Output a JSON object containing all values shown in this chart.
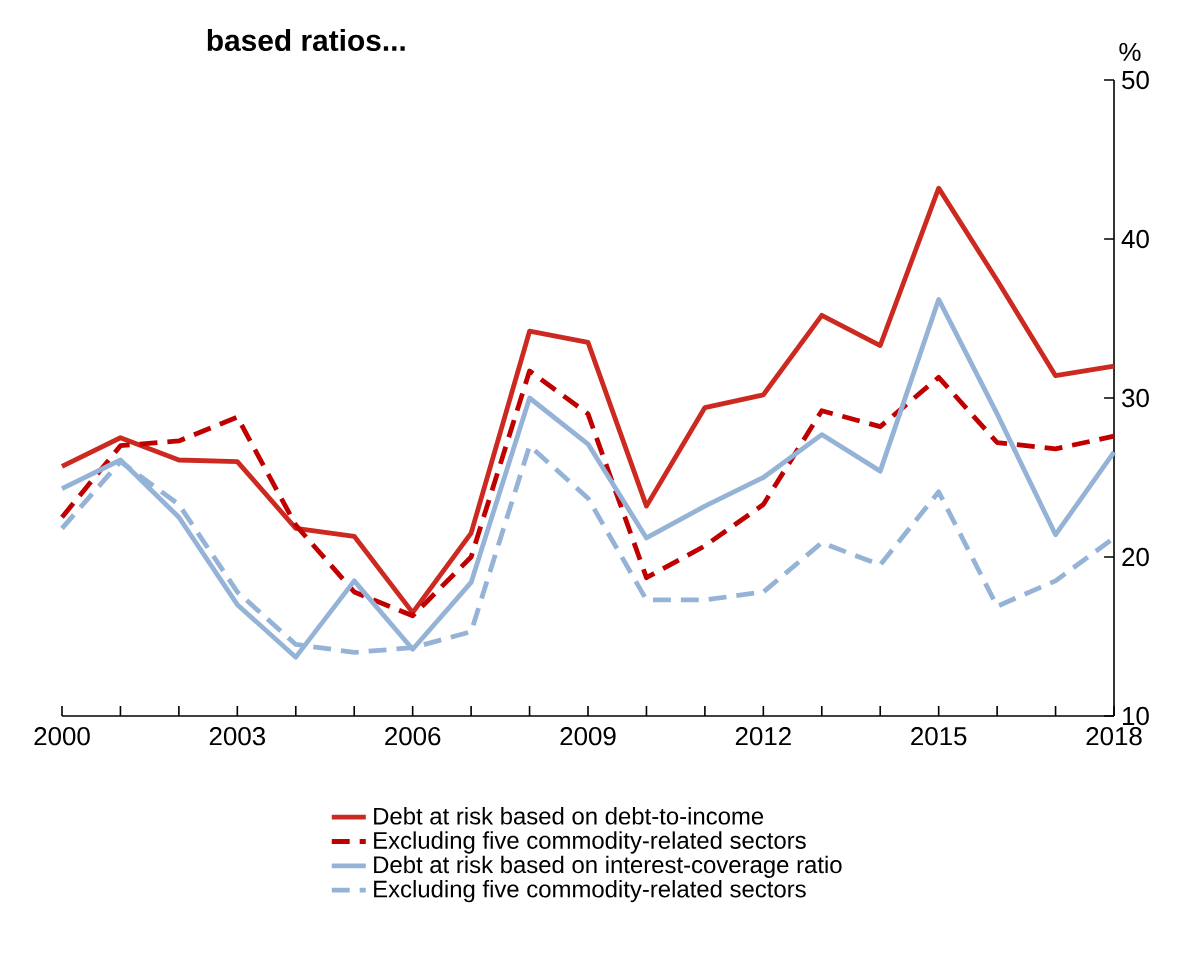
{
  "chart_data": {
    "type": "line",
    "title": "based ratios...",
    "ylabel": "%",
    "x": [
      2000,
      2001,
      2002,
      2003,
      2004,
      2005,
      2006,
      2007,
      2008,
      2009,
      2010,
      2011,
      2012,
      2013,
      2014,
      2015,
      2016,
      2017,
      2018
    ],
    "series": [
      {
        "name": "Debt at risk based on debt-to-income",
        "color": "#cc2a20",
        "line_style": "solid",
        "values": [
          25.7,
          27.5,
          26.1,
          26.0,
          21.8,
          21.3,
          16.5,
          21.5,
          34.2,
          33.5,
          23.2,
          29.4,
          30.2,
          35.2,
          33.3,
          43.2,
          37.4,
          31.4,
          32.0
        ]
      },
      {
        "name": "Excluding five commodity-related sectors",
        "color": "#c00000",
        "line_style": "dashed",
        "values": [
          22.5,
          27.0,
          27.3,
          28.8,
          22.0,
          17.8,
          16.3,
          20.0,
          31.7,
          29.0,
          18.7,
          20.7,
          23.3,
          29.2,
          28.2,
          31.3,
          27.2,
          26.8,
          27.6
        ]
      },
      {
        "name": "Debt at risk based on interest-coverage ratio",
        "color": "#95b3d7",
        "line_style": "solid",
        "values": [
          24.3,
          26.1,
          22.5,
          17.0,
          13.7,
          18.5,
          14.2,
          18.4,
          30.0,
          27.1,
          21.2,
          23.2,
          25.0,
          27.7,
          25.4,
          36.2,
          29.0,
          21.4,
          26.6
        ]
      },
      {
        "name": "Excluding five commodity-related sectors",
        "color": "#95b3d7",
        "line_style": "dashed",
        "values": [
          21.8,
          26.0,
          23.3,
          17.8,
          14.5,
          14.0,
          14.3,
          15.3,
          27.0,
          23.7,
          17.3,
          17.3,
          17.8,
          20.9,
          19.5,
          24.1,
          16.9,
          18.5,
          21.2
        ]
      }
    ],
    "xlim": [
      2000,
      2018
    ],
    "xticks": [
      {
        "value": 2000,
        "label": "2000"
      },
      {
        "value": 2001,
        "label": null
      },
      {
        "value": 2002,
        "label": null
      },
      {
        "value": 2003,
        "label": "2003"
      },
      {
        "value": 2004,
        "label": null
      },
      {
        "value": 2005,
        "label": null
      },
      {
        "value": 2006,
        "label": "2006"
      },
      {
        "value": 2007,
        "label": null
      },
      {
        "value": 2008,
        "label": null
      },
      {
        "value": 2009,
        "label": "2009"
      },
      {
        "value": 2010,
        "label": null
      },
      {
        "value": 2011,
        "label": null
      },
      {
        "value": 2012,
        "label": "2012"
      },
      {
        "value": 2013,
        "label": null
      },
      {
        "value": 2014,
        "label": null
      },
      {
        "value": 2015,
        "label": "2015"
      },
      {
        "value": 2016,
        "label": null
      },
      {
        "value": 2017,
        "label": null
      },
      {
        "value": 2018,
        "label": "2018"
      }
    ],
    "ylim": [
      10,
      50
    ],
    "yticks": [
      10,
      20,
      30,
      40,
      50
    ],
    "grid": false,
    "legend": "bottom",
    "marker": "none"
  }
}
